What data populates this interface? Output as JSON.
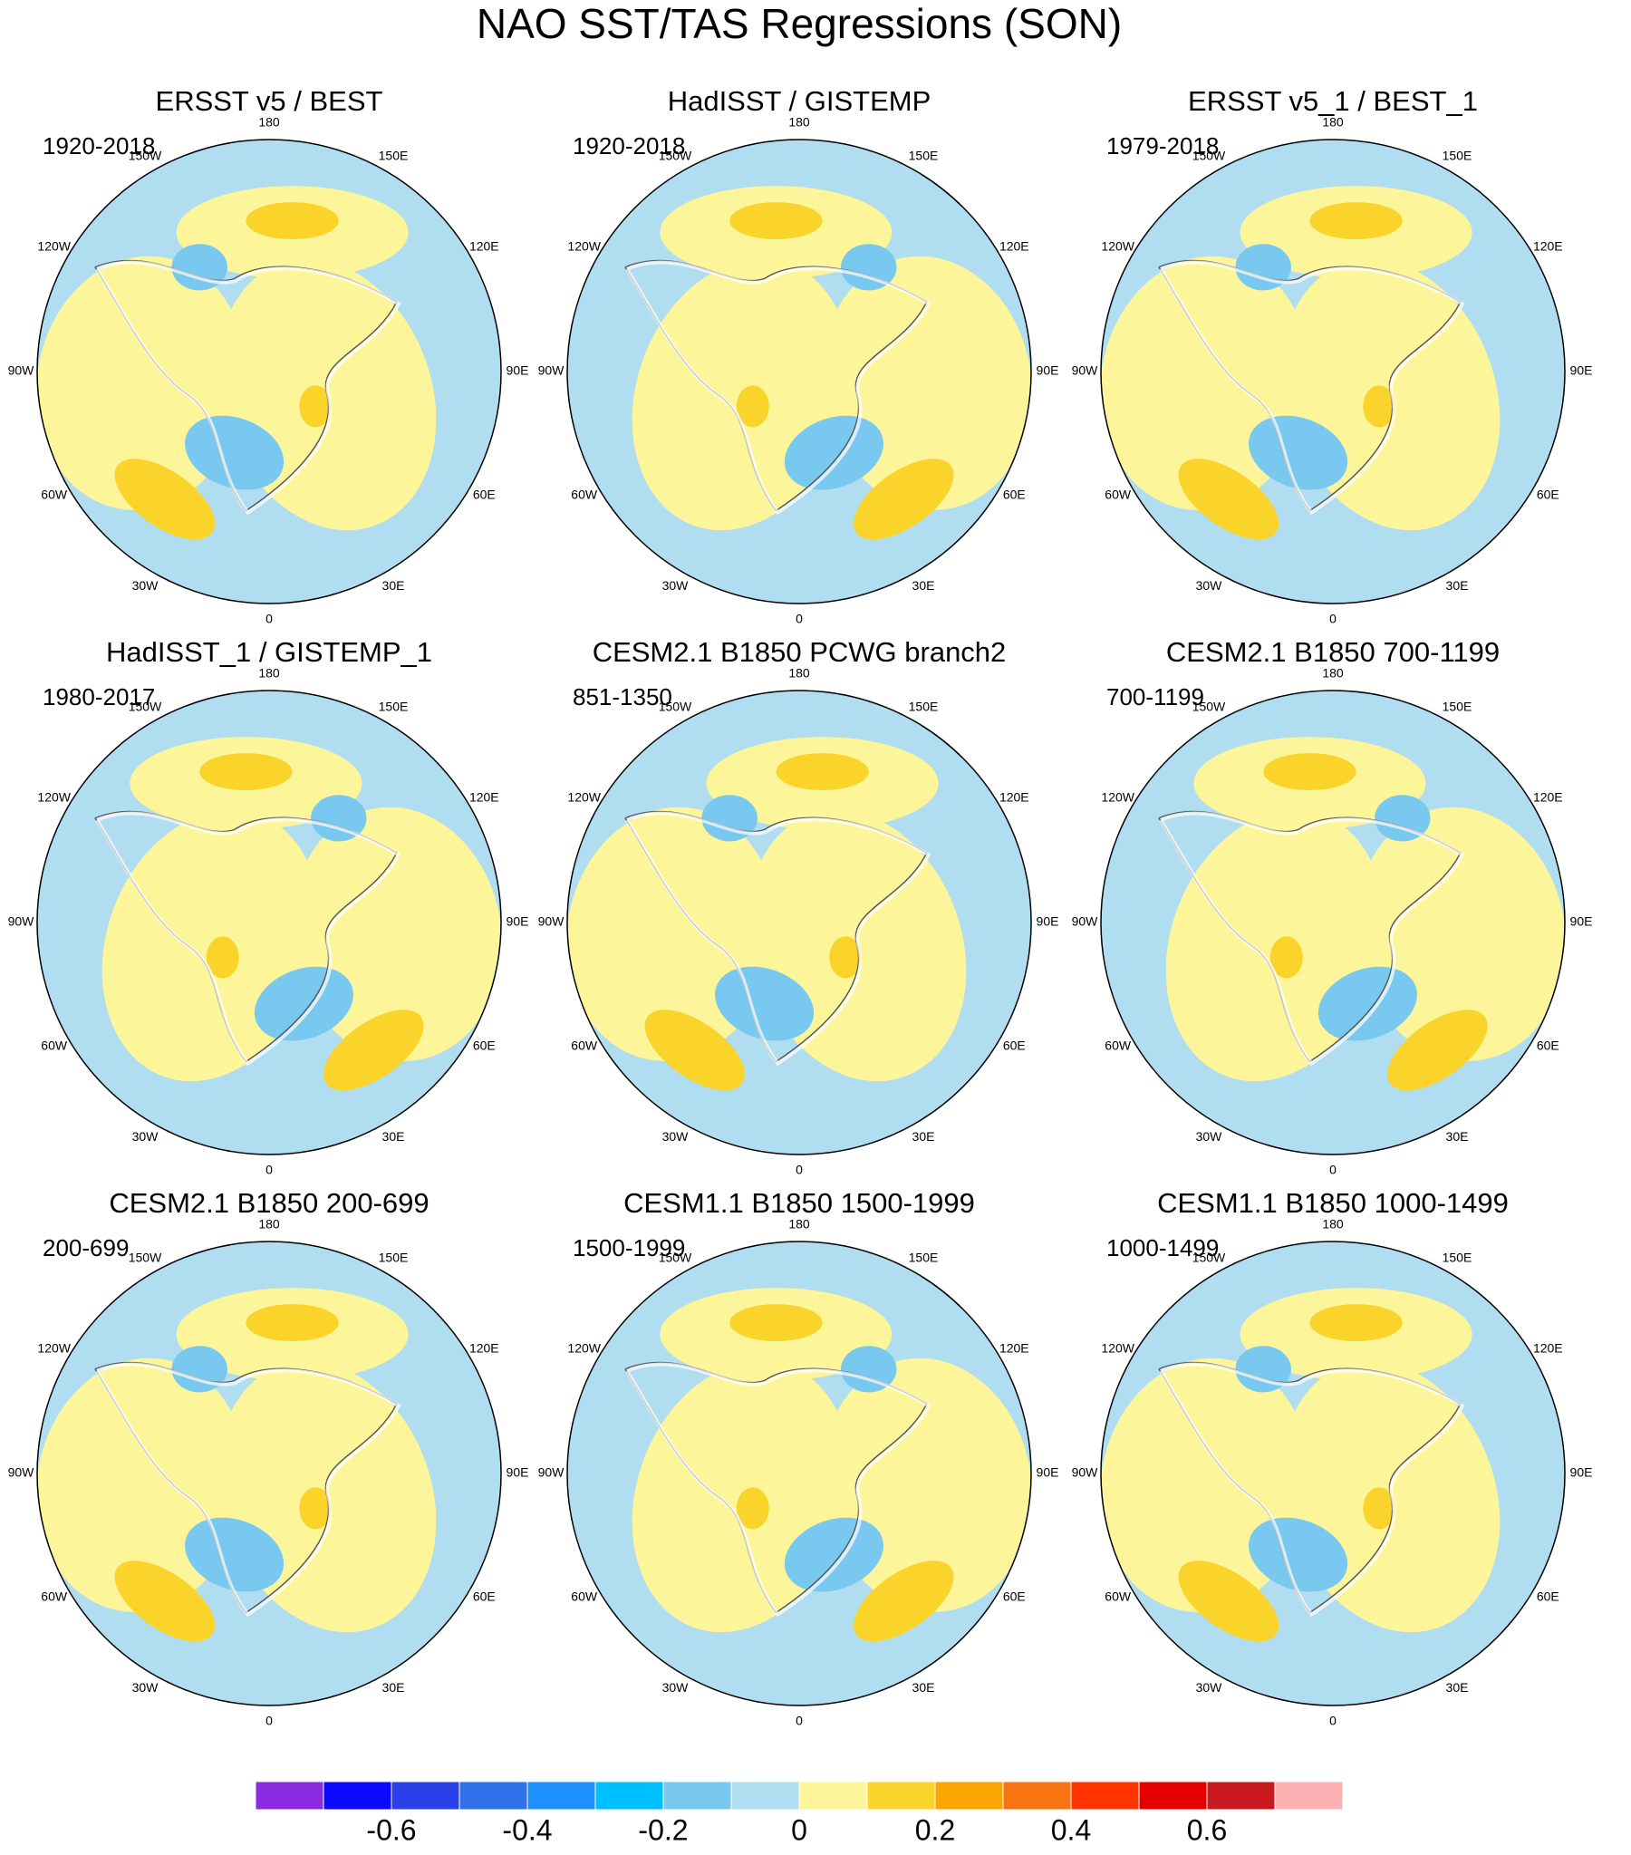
{
  "title": "NAO SST/TAS Regressions (SON)",
  "panels": [
    {
      "title": "ERSST v5 / BEST",
      "period": "1920-2018"
    },
    {
      "title": "HadISST / GISTEMP",
      "period": "1920-2018"
    },
    {
      "title": "ERSST v5_1 / BEST_1",
      "period": "1979-2018"
    },
    {
      "title": "HadISST_1 / GISTEMP_1",
      "period": "1980-2017"
    },
    {
      "title": "CESM2.1 B1850 PCWG branch2",
      "period": "851-1350"
    },
    {
      "title": "CESM2.1 B1850 700-1199",
      "period": "700-1199"
    },
    {
      "title": "CESM2.1 B1850 200-699",
      "period": "200-699"
    },
    {
      "title": "CESM1.1 B1850 1500-1999",
      "period": "1500-1999"
    },
    {
      "title": "CESM1.1 B1850 1000-1499",
      "period": "1000-1499"
    }
  ],
  "longitude_labels": [
    "180",
    "150E",
    "120E",
    "90E",
    "60E",
    "30E",
    "0",
    "30W",
    "60W",
    "90W",
    "120W",
    "150W"
  ],
  "colorbar": {
    "colors": [
      "#8a2be2",
      "#0a0aff",
      "#2a40e8",
      "#3070e8",
      "#1e90ff",
      "#00bfff",
      "#78c8f0",
      "#b0ddf0",
      "#fdf59a",
      "#fad42a",
      "#faa500",
      "#f87311",
      "#ff3300",
      "#e50000",
      "#c8191e",
      "#fcb2b2"
    ],
    "lim": [
      -0.8,
      0.8
    ],
    "ticks": [
      -0.6,
      -0.4,
      -0.2,
      0,
      0.2,
      0.4,
      0.6
    ]
  }
}
